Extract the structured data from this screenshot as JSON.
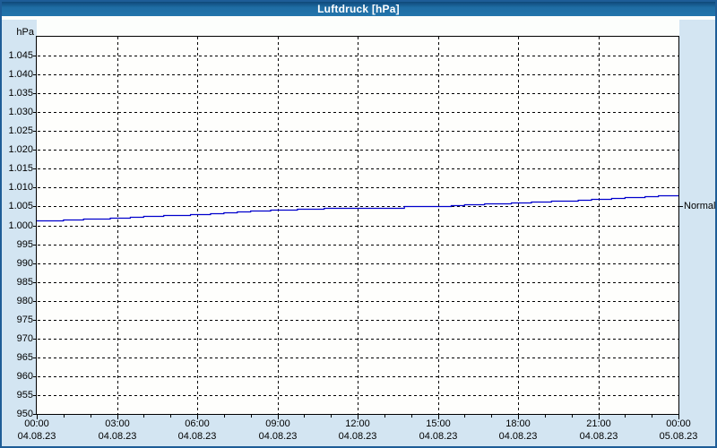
{
  "window": {
    "title": "Luftdruck [hPa]"
  },
  "colors": {
    "titlebar_blue": "#1f6da4",
    "outer_border": "#1e5d97",
    "page_background": "#d3e5f2",
    "plot_background": "#fefefc",
    "gridline": "#000000",
    "series_line": "#0000cc",
    "text": "#000000"
  },
  "chart_data": {
    "type": "line",
    "title": "Luftdruck [hPa]",
    "y_unit_label": "hPa",
    "ylim": [
      950,
      1050
    ],
    "xlim_hours": [
      0,
      24
    ],
    "grid": "dashed-black",
    "legend_position": "none",
    "y_ticks": [
      {
        "value": 1045,
        "label": "1.045"
      },
      {
        "value": 1040,
        "label": "1.040"
      },
      {
        "value": 1035,
        "label": "1.035"
      },
      {
        "value": 1030,
        "label": "1.030"
      },
      {
        "value": 1025,
        "label": "1.025"
      },
      {
        "value": 1020,
        "label": "1.020"
      },
      {
        "value": 1015,
        "label": "1.015"
      },
      {
        "value": 1010,
        "label": "1.010"
      },
      {
        "value": 1005,
        "label": "1.005"
      },
      {
        "value": 1000,
        "label": "1.000"
      },
      {
        "value": 995,
        "label": "995"
      },
      {
        "value": 990,
        "label": "990"
      },
      {
        "value": 985,
        "label": "985"
      },
      {
        "value": 980,
        "label": "980"
      },
      {
        "value": 975,
        "label": "975"
      },
      {
        "value": 970,
        "label": "970"
      },
      {
        "value": 965,
        "label": "965"
      },
      {
        "value": 960,
        "label": "960"
      },
      {
        "value": 955,
        "label": "955"
      },
      {
        "value": 950,
        "label": "950"
      }
    ],
    "x_ticks": [
      {
        "hour": 0,
        "time": "00:00",
        "date": "04.08.23"
      },
      {
        "hour": 3,
        "time": "03:00",
        "date": "04.08.23"
      },
      {
        "hour": 6,
        "time": "06:00",
        "date": "04.08.23"
      },
      {
        "hour": 9,
        "time": "09:00",
        "date": "04.08.23"
      },
      {
        "hour": 12,
        "time": "12:00",
        "date": "04.08.23"
      },
      {
        "hour": 15,
        "time": "15:00",
        "date": "04.08.23"
      },
      {
        "hour": 18,
        "time": "18:00",
        "date": "04.08.23"
      },
      {
        "hour": 21,
        "time": "21:00",
        "date": "04.08.23"
      },
      {
        "hour": 24,
        "time": "00:00",
        "date": "05.08.23"
      }
    ],
    "series": [
      {
        "name": "Luftdruck",
        "color": "#0000cc",
        "x_hours": [
          0,
          1,
          2,
          3,
          4,
          5,
          6,
          7,
          8,
          9,
          10,
          11,
          12,
          13,
          14,
          15,
          16,
          17,
          18,
          19,
          20,
          21,
          22,
          23,
          24
        ],
        "values": [
          1001.2,
          1001.4,
          1001.7,
          1002.0,
          1002.4,
          1002.7,
          1003.0,
          1003.4,
          1003.9,
          1004.2,
          1004.5,
          1004.7,
          1004.8,
          1004.8,
          1004.9,
          1004.9,
          1005.4,
          1005.7,
          1006.0,
          1006.3,
          1006.6,
          1007.0,
          1007.4,
          1007.8,
          1008.1
        ]
      }
    ],
    "annotations": [
      {
        "label": "Normal",
        "value": 1005
      }
    ]
  }
}
